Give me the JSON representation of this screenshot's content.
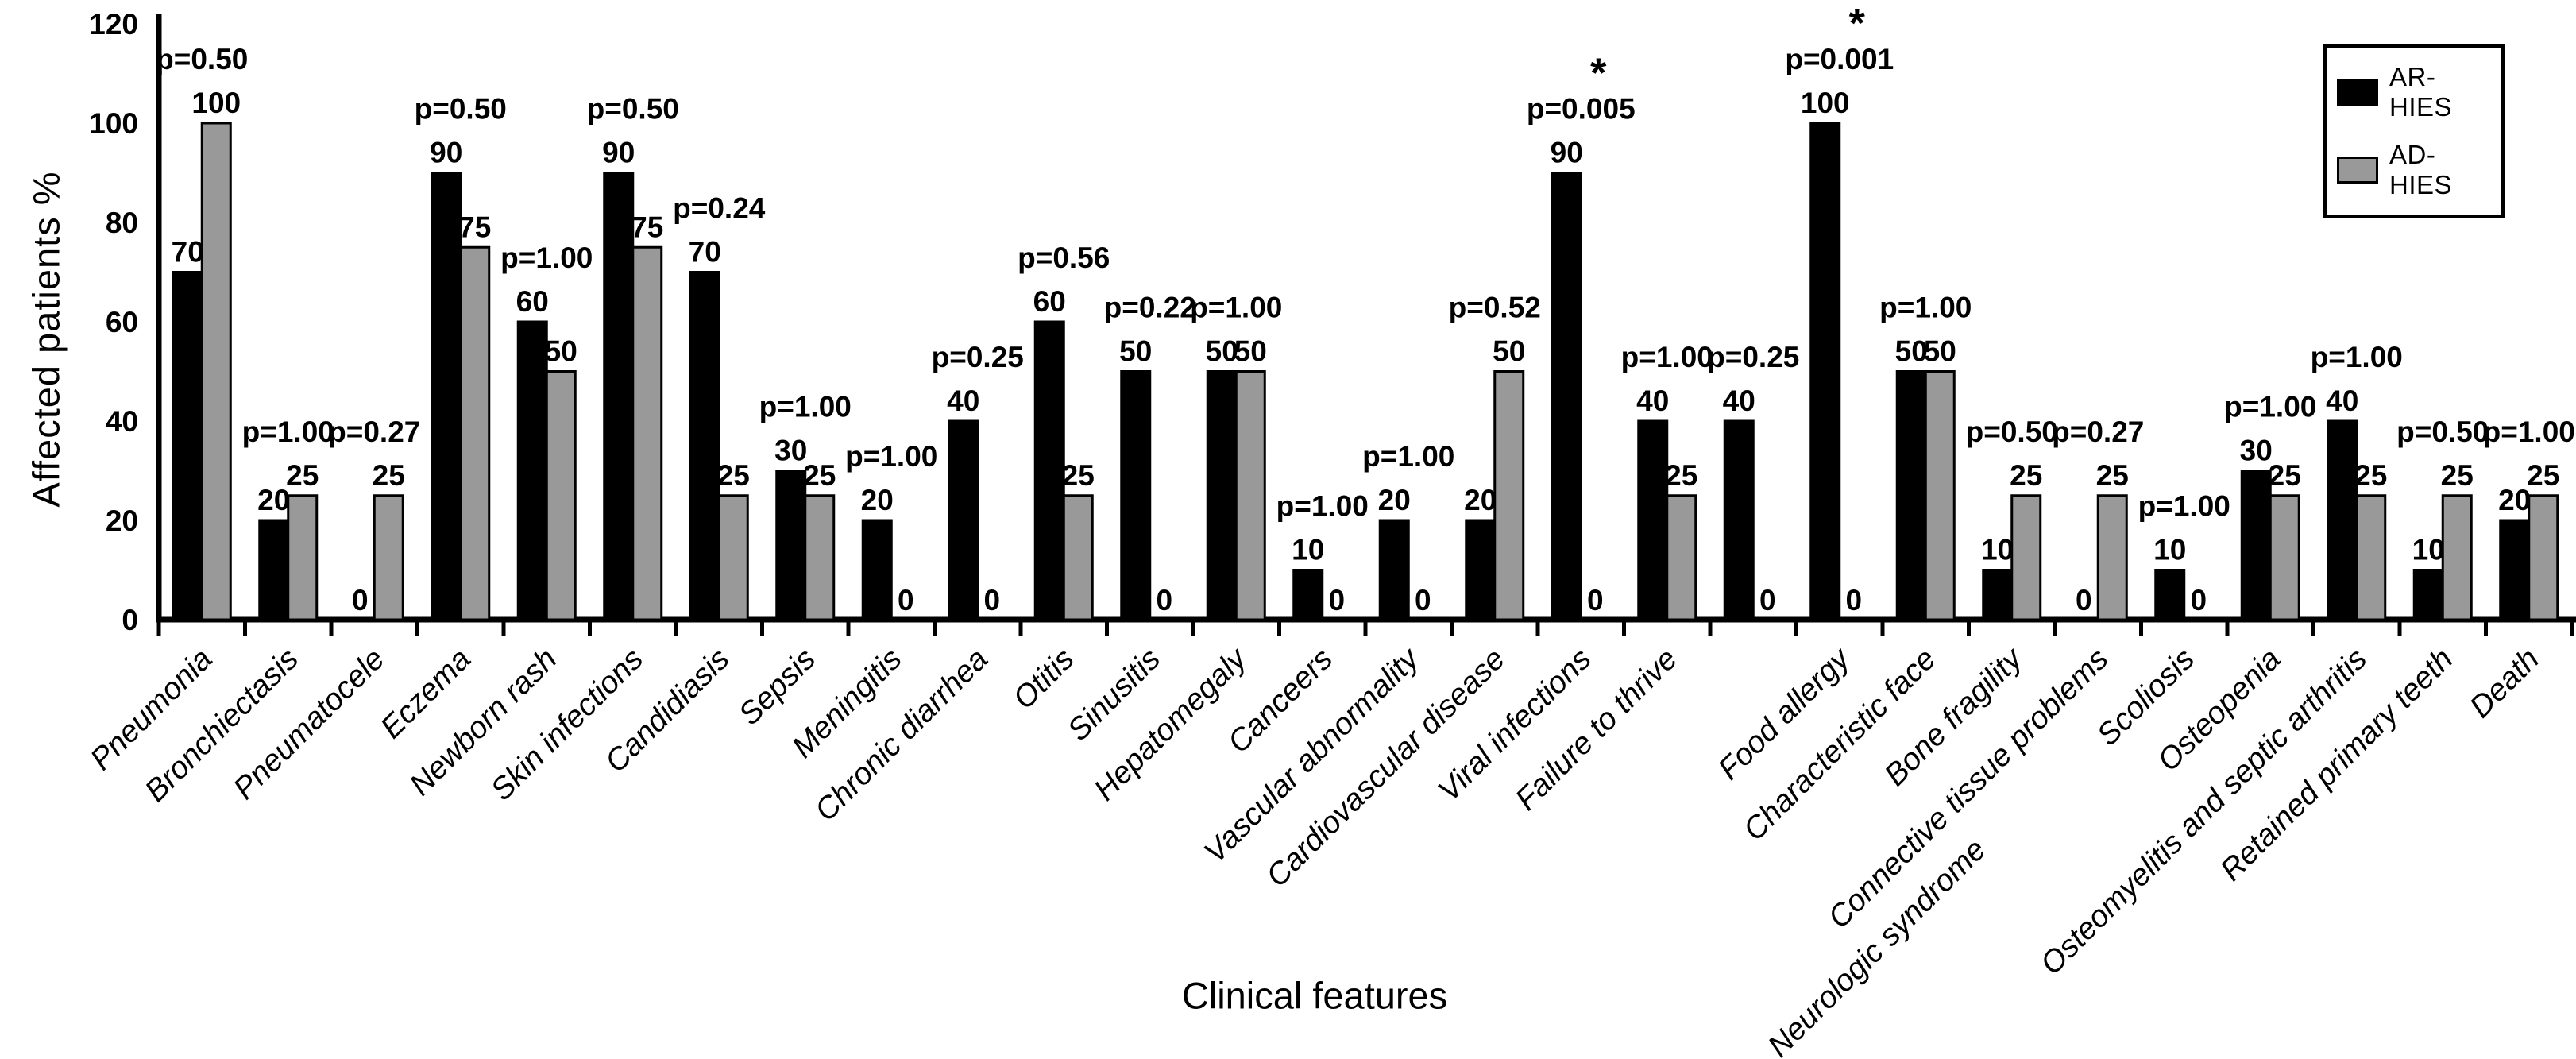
{
  "figure": {
    "y_axis_title": "Affected patients %",
    "x_axis_title": "Clinical features"
  },
  "chart_data": {
    "type": "bar",
    "title": "",
    "xlabel": "Clinical features",
    "ylabel": "Affected patients %",
    "ylim": [
      0,
      120
    ],
    "yticks": [
      0,
      20,
      40,
      60,
      80,
      100,
      120
    ],
    "grid": false,
    "legend_position": "top-right",
    "bar_outline_color": "#000000",
    "categories": [
      "Pneumonia",
      "Bronchiectasis",
      "Pneumatocele",
      "Eczema",
      "Newborn rash",
      "Skin infections",
      "Candidiasis",
      "Sepsis",
      "Meningitis",
      "Chronic diarrhea",
      "Otitis",
      "Sinusitis",
      "Hepatomegaly",
      "Canceers",
      "Vascular abnormality",
      "Cardiovascular disease",
      "Viral infections",
      "Failure to thrive",
      "Neurologic syndrome",
      "Food allergy",
      "Characteristic face",
      "Bone fragility",
      "Connective tissue problems",
      "Scoliosis",
      "Osteopenia",
      "Osteomyelitis and septic arthritis",
      "Retained primary teeth",
      "Death"
    ],
    "series": [
      {
        "name": "AR-HIES",
        "color": "#000000",
        "values": [
          70,
          20,
          0,
          90,
          60,
          90,
          70,
          30,
          20,
          40,
          60,
          50,
          50,
          10,
          20,
          20,
          90,
          40,
          40,
          100,
          50,
          10,
          0,
          10,
          30,
          40,
          10,
          20
        ]
      },
      {
        "name": "AD-HIES",
        "color": "#999999",
        "values": [
          100,
          25,
          25,
          75,
          50,
          75,
          25,
          25,
          0,
          0,
          25,
          0,
          50,
          0,
          0,
          50,
          0,
          25,
          0,
          0,
          50,
          25,
          25,
          0,
          25,
          25,
          25,
          25
        ]
      }
    ],
    "p_values": [
      "p=0.50",
      "p=1.00",
      "p=0.27",
      "p=0.50",
      "p=1.00",
      "p=0.50",
      "p=0.24",
      "p=1.00",
      "p=1.00",
      "p=0.25",
      "p=0.56",
      "p=0.22",
      "p=1.00",
      "p=1.00",
      "p=1.00",
      "p=0.52",
      "p=0.005",
      "p=1.00",
      "p=0.25",
      "p=0.001",
      "p=1.00",
      "p=0.50",
      "p=0.27",
      "p=1.00",
      "p=1.00",
      "p=1.00",
      "p=0.50",
      "p=1.00"
    ],
    "significance_marker": "*",
    "significant_categories": [
      "Viral infections",
      "Food allergy"
    ],
    "layout": {
      "label_offsets": {
        "Neurologic syndrome": [
          280,
          240
        ]
      }
    }
  }
}
